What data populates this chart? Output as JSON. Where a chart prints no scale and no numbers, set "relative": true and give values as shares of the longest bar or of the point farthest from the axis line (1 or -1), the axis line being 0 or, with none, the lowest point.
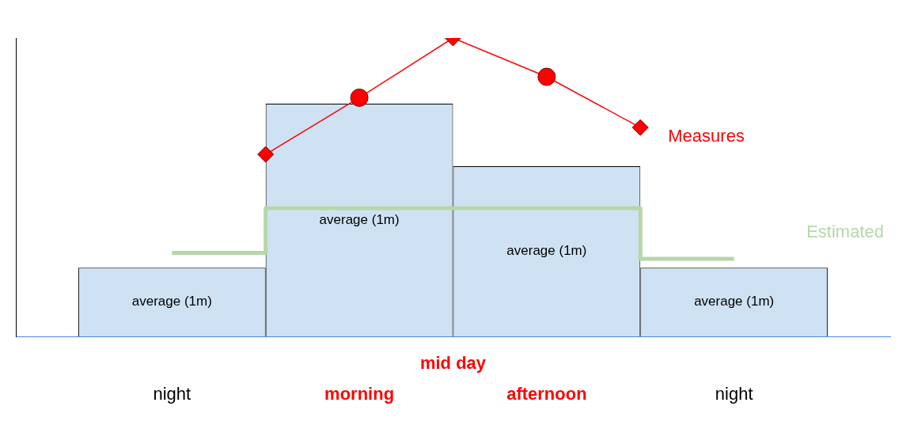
{
  "chart_data": {
    "type": "bar",
    "relative": true,
    "legend": false,
    "categories": [
      "night",
      null,
      "morning",
      "mid day",
      "afternoon",
      null,
      "night"
    ],
    "series": [
      {
        "color": "#cfe2f3",
        "values": [
          0.23,
          null,
          0.78,
          null,
          0.57,
          null,
          0.23
        ]
      },
      {
        "type": "line",
        "name": "Measures",
        "color": "#ff0000",
        "marker": "none",
        "values": [
          null,
          0.61,
          0.8,
          1,
          0.87,
          0.7,
          null
        ]
      },
      {
        "type": "scatter",
        "color": "#ff0000",
        "marker": "diamond",
        "values": [
          null,
          0.61,
          null,
          1,
          null,
          0.7,
          null
        ]
      },
      {
        "type": "scatter",
        "color": "#ff0000",
        "marker": "circle",
        "values": [
          null,
          null,
          0.8,
          null,
          0.87,
          null,
          null
        ]
      },
      {
        "type": "step",
        "name": "Estimated",
        "color": "#b6d7a8",
        "values": [
          0.28,
          null,
          0.43,
          0.43,
          0.43,
          null,
          0.26
        ]
      }
    ],
    "annotations": [
      "average (1m)",
      "average (1m)",
      "average (1m)",
      "average (1m)"
    ]
  }
}
